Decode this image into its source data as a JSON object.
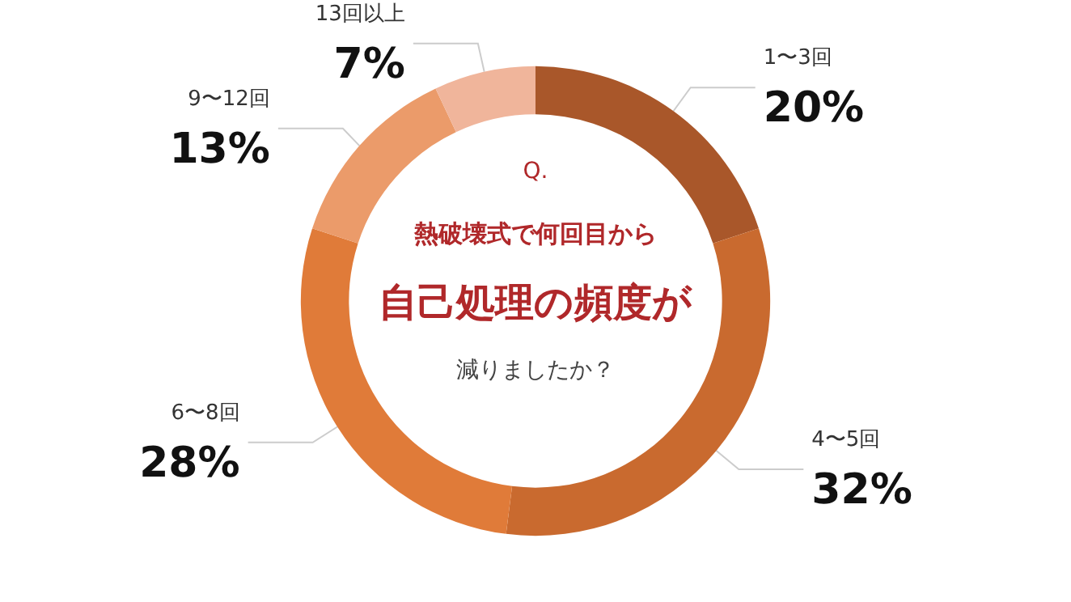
{
  "chart_data": {
    "type": "donut",
    "annotations": [
      "Q.",
      "熱破壊式で何回目から",
      "自己処理の頻度が",
      "減りましたか？"
    ],
    "categories": [
      "1〜3回",
      "4〜5回",
      "6〜8回",
      "9〜12回",
      "13回以上"
    ],
    "values": [
      20,
      32,
      28,
      13,
      7
    ],
    "value_labels": [
      "20%",
      "32%",
      "28%",
      "13%",
      "7%"
    ],
    "colors": [
      "#a9572a",
      "#c96a2f",
      "#e07b39",
      "#eb9b6a",
      "#f0b59b"
    ],
    "legend": false
  }
}
